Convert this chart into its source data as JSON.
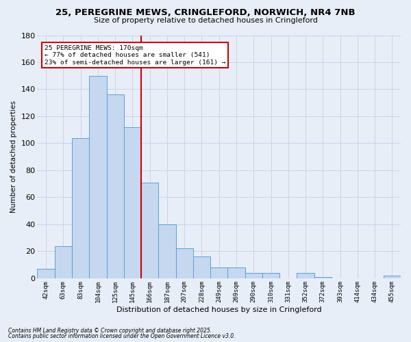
{
  "title": "25, PEREGRINE MEWS, CRINGLEFORD, NORWICH, NR4 7NB",
  "subtitle": "Size of property relative to detached houses in Cringleford",
  "xlabel": "Distribution of detached houses by size in Cringleford",
  "ylabel": "Number of detached properties",
  "bar_labels": [
    "42sqm",
    "63sqm",
    "83sqm",
    "104sqm",
    "125sqm",
    "145sqm",
    "166sqm",
    "187sqm",
    "207sqm",
    "228sqm",
    "249sqm",
    "269sqm",
    "290sqm",
    "310sqm",
    "331sqm",
    "352sqm",
    "372sqm",
    "393sqm",
    "414sqm",
    "434sqm",
    "455sqm"
  ],
  "bar_values": [
    7,
    24,
    104,
    150,
    136,
    112,
    71,
    40,
    22,
    16,
    8,
    8,
    4,
    4,
    0,
    4,
    1,
    0,
    0,
    0,
    2
  ],
  "bar_color": "#c5d8f0",
  "bar_edge_color": "#5a9fd4",
  "grid_color": "#c8d4e8",
  "background_color": "#e8eef8",
  "vline_x_index": 6,
  "vline_color": "#cc0000",
  "annotation_title": "25 PEREGRINE MEWS: 170sqm",
  "annotation_line1": "← 77% of detached houses are smaller (541)",
  "annotation_line2": "23% of semi-detached houses are larger (161) →",
  "annotation_box_color": "#ffffff",
  "annotation_box_edge": "#cc0000",
  "ylim": [
    0,
    180
  ],
  "yticks": [
    0,
    20,
    40,
    60,
    80,
    100,
    120,
    140,
    160,
    180
  ],
  "footnote1": "Contains HM Land Registry data © Crown copyright and database right 2025.",
  "footnote2": "Contains public sector information licensed under the Open Government Licence v3.0."
}
